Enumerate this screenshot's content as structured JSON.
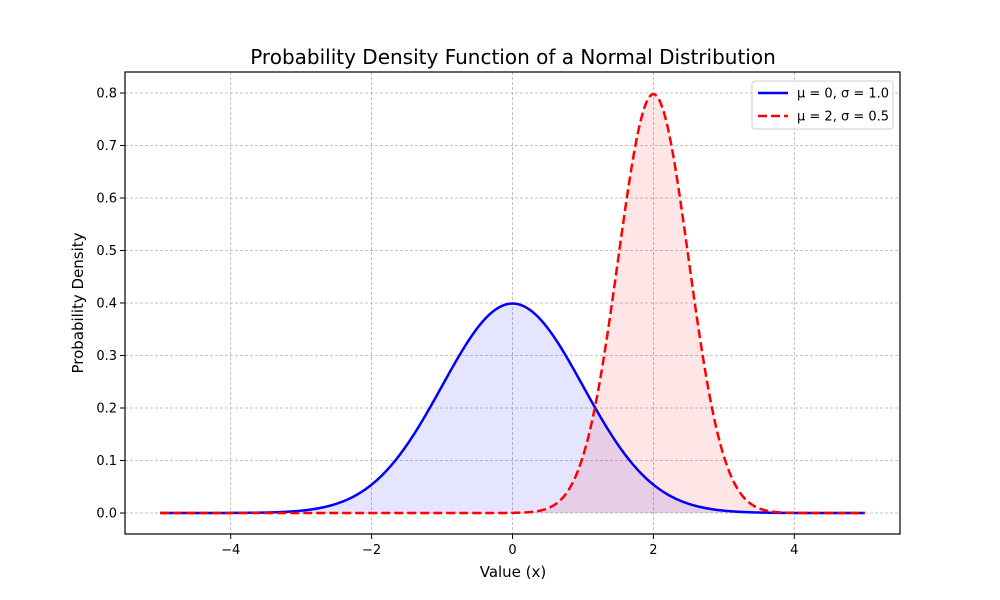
{
  "chart_data": {
    "type": "line",
    "title": "Probability Density Function of a Normal Distribution",
    "xlabel": "Value (x)",
    "ylabel": "Probability Density",
    "xlim": [
      -5.5,
      5.5
    ],
    "ylim": [
      -0.04,
      0.84
    ],
    "x_range": [
      -5,
      5
    ],
    "xticks": [
      -4,
      -2,
      0,
      2,
      4
    ],
    "xtick_labels": [
      "−4",
      "−2",
      "0",
      "2",
      "4"
    ],
    "yticks": [
      0.0,
      0.1,
      0.2,
      0.3,
      0.4,
      0.5,
      0.6,
      0.7,
      0.8
    ],
    "ytick_labels": [
      "0.0",
      "0.1",
      "0.2",
      "0.3",
      "0.4",
      "0.5",
      "0.6",
      "0.7",
      "0.8"
    ],
    "grid": true,
    "legend_position": "top-right",
    "series": [
      {
        "name": "μ = 0, σ = 1.0",
        "mu": 0,
        "sigma": 1.0,
        "color": "#0000ff",
        "fill_color": "#0000ff",
        "fill_alpha": 0.1,
        "line_style": "solid",
        "peak": 0.399
      },
      {
        "name": "μ = 2, σ = 0.5",
        "mu": 2,
        "sigma": 0.5,
        "color": "#ff0000",
        "fill_color": "#ff0000",
        "fill_alpha": 0.1,
        "line_style": "dashed",
        "peak": 0.798
      }
    ]
  }
}
